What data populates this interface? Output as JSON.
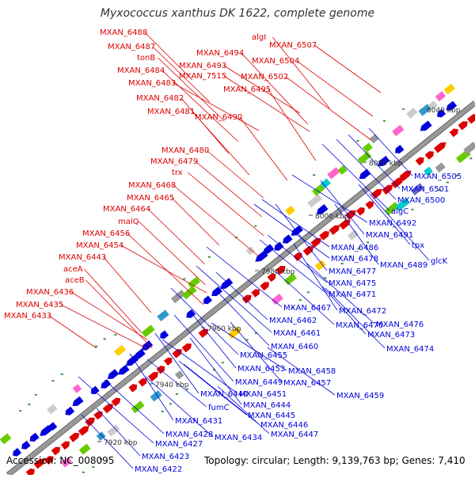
{
  "title": "Myxococcus xanthus DK 1622, complete genome",
  "footer": {
    "accession": "Accession: NC_008095",
    "topology": "Topology: circular; Length: 9,139,763 bp; Genes: 7,410"
  },
  "colors": {
    "forward": "#dd0000",
    "reverse": "#0000dd",
    "backbone": "#999999"
  },
  "kbp_labels": [
    "7920 kbp",
    "7940 kbp",
    "7960 kbp",
    "7980 kbp",
    "8000 kbp",
    "8020 kbp",
    "8040 kbp"
  ],
  "forward_genes": [
    "MXAN_6488",
    "MXAN_6487",
    "tonB",
    "MXAN_6484",
    "MXAN_6483",
    "MXAN_6482",
    "MXAN_6481",
    "MXAN_6494",
    "MXAN_6493",
    "MXAN_7515",
    "MXAN_6490",
    "algI",
    "MXAN_6507",
    "MXAN_6504",
    "MXAN_6502",
    "MXAN_6495",
    "MXAN_6480",
    "MXAN_6479",
    "trx",
    "MXAN_6468",
    "MXAN_6465",
    "MXAN_6464",
    "malQ",
    "MXAN_6456",
    "MXAN_6454",
    "MXAN_6443",
    "aceA",
    "aceB",
    "MXAN_6436",
    "MXAN_6435",
    "MXAN_6433"
  ],
  "reverse_genes": [
    "MXAN_6505",
    "MXAN_6501",
    "MXAN_6500",
    "algC",
    "MXAN_6492",
    "MXAN_6491",
    "tpx",
    "glcK",
    "MXAN_6486",
    "MXAN_6478",
    "MXAN_6489",
    "MXAN_6477",
    "MXAN_6475",
    "MXAN_6471",
    "MXAN_6467",
    "MXAN_6472",
    "MXAN_6462",
    "MXAN_6470",
    "MXAN_6476",
    "MXAN_6461",
    "MXAN_6473",
    "MXAN_6460",
    "MXAN_6474",
    "MXAN_6455",
    "MXAN_6458",
    "MXAN_6453",
    "MXAN_6457",
    "MXAN_6449",
    "MXAN_6459",
    "MXAN_6451",
    "MXAN_6440",
    "MXAN_6444",
    "fumC",
    "MXAN_6445",
    "MXAN_6446",
    "MXAN_6431",
    "MXAN_6447",
    "MXAN_6428",
    "MXAN_6434",
    "MXAN_6427",
    "MXAN_6423",
    "MXAN_6422"
  ]
}
